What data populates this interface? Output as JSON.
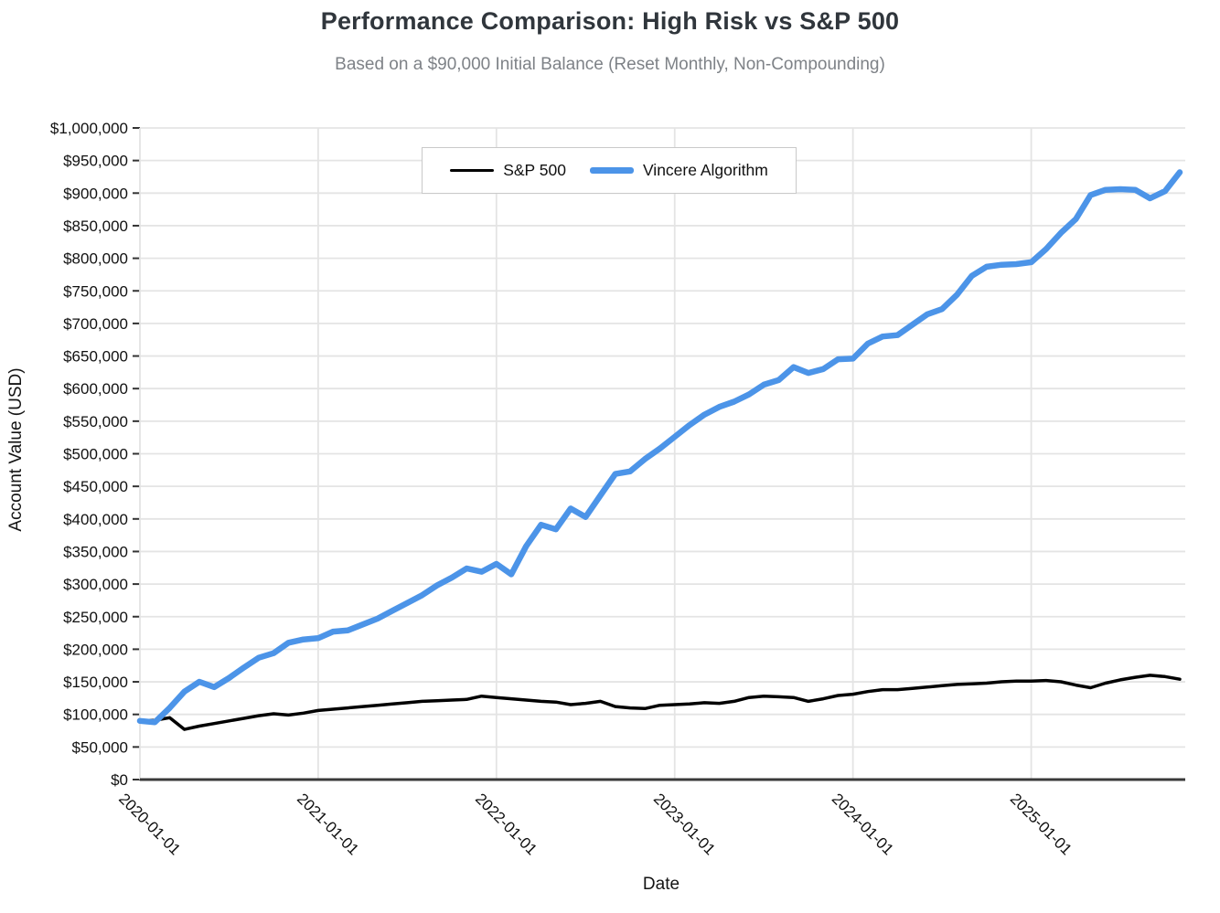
{
  "header": {
    "title": "Performance Comparison: High Risk vs S&P 500",
    "subtitle": "Based on a $90,000 Initial Balance (Reset Monthly, Non-Compounding)"
  },
  "colors": {
    "sp500_line": "#000000",
    "vincere_line": "#4C94E8",
    "gridline": "#e4e4e4",
    "axis_line": "#3a3a3a",
    "title_text": "#30363c",
    "subtitle_text": "#7e8287",
    "legend_border": "#c9c9c9"
  },
  "chart_data": {
    "type": "line",
    "title": "Performance Comparison: High Risk vs S&P 500",
    "subtitle": "Based on a $90,000 Initial Balance (Reset Monthly, Non-Compounding)",
    "xlabel": "Date",
    "ylabel": "Account Value (USD)",
    "ylim": [
      0,
      1000000
    ],
    "ytick_step": 50000,
    "grid": true,
    "legend_position": "top-center-inside",
    "ytick_labels": [
      "$0",
      "$50,000",
      "$100,000",
      "$150,000",
      "$200,000",
      "$250,000",
      "$300,000",
      "$350,000",
      "$400,000",
      "$450,000",
      "$500,000",
      "$550,000",
      "$600,000",
      "$650,000",
      "$700,000",
      "$750,000",
      "$800,000",
      "$850,000",
      "$900,000",
      "$950,000",
      "$1,000,000"
    ],
    "xticks": [
      {
        "index": 0,
        "label": "2020-01-01"
      },
      {
        "index": 12,
        "label": "2021-01-01"
      },
      {
        "index": 24,
        "label": "2022-01-01"
      },
      {
        "index": 36,
        "label": "2023-01-01"
      },
      {
        "index": 48,
        "label": "2024-01-01"
      },
      {
        "index": 60,
        "label": "2025-01-01"
      }
    ],
    "x": [
      "2020-01",
      "2020-02",
      "2020-03",
      "2020-04",
      "2020-05",
      "2020-06",
      "2020-07",
      "2020-08",
      "2020-09",
      "2020-10",
      "2020-11",
      "2020-12",
      "2021-01",
      "2021-02",
      "2021-03",
      "2021-04",
      "2021-05",
      "2021-06",
      "2021-07",
      "2021-08",
      "2021-09",
      "2021-10",
      "2021-11",
      "2021-12",
      "2022-01",
      "2022-02",
      "2022-03",
      "2022-04",
      "2022-05",
      "2022-06",
      "2022-07",
      "2022-08",
      "2022-09",
      "2022-10",
      "2022-11",
      "2022-12",
      "2023-01",
      "2023-02",
      "2023-03",
      "2023-04",
      "2023-05",
      "2023-06",
      "2023-07",
      "2023-08",
      "2023-09",
      "2023-10",
      "2023-11",
      "2023-12",
      "2024-01",
      "2024-02",
      "2024-03",
      "2024-04",
      "2024-05",
      "2024-06",
      "2024-07",
      "2024-08",
      "2024-09",
      "2024-10",
      "2024-11",
      "2024-12",
      "2025-01",
      "2025-02",
      "2025-03",
      "2025-04",
      "2025-05",
      "2025-06",
      "2025-07",
      "2025-08",
      "2025-09",
      "2025-10",
      "2025-11"
    ],
    "series": [
      {
        "name": "S&P 500",
        "color": "#000000",
        "width": 3.5,
        "values": [
          90000,
          91000,
          95000,
          77000,
          82000,
          86000,
          90000,
          94000,
          98000,
          101000,
          99000,
          102000,
          106000,
          108000,
          110000,
          112000,
          114000,
          116000,
          118000,
          120000,
          121000,
          122000,
          123000,
          128000,
          126000,
          124000,
          122000,
          120000,
          119000,
          115000,
          117000,
          120000,
          112000,
          110000,
          109000,
          114000,
          115000,
          116000,
          118000,
          117000,
          120000,
          126000,
          128000,
          127000,
          126000,
          120000,
          124000,
          129000,
          131000,
          135000,
          138000,
          138000,
          140000,
          142000,
          144000,
          146000,
          147000,
          148000,
          150000,
          151000,
          151000,
          152000,
          150000,
          145000,
          141000,
          148000,
          153000,
          157000,
          160000,
          158000,
          154000
        ]
      },
      {
        "name": "Vincere Algorithm",
        "color": "#4C94E8",
        "width": 6.5,
        "values": [
          90000,
          88000,
          110000,
          135000,
          150000,
          142000,
          156000,
          172000,
          187000,
          194000,
          210000,
          215000,
          217000,
          227000,
          229000,
          238000,
          247000,
          259000,
          271000,
          283000,
          298000,
          310000,
          324000,
          319000,
          331000,
          315000,
          358000,
          391000,
          384000,
          416000,
          403000,
          436000,
          469000,
          473000,
          492000,
          508000,
          526000,
          544000,
          560000,
          572000,
          580000,
          591000,
          606000,
          613000,
          633000,
          624000,
          630000,
          645000,
          646000,
          669000,
          680000,
          682000,
          698000,
          714000,
          722000,
          744000,
          773000,
          787000,
          790000,
          791000,
          794000,
          814000,
          839000,
          860000,
          897000,
          905000,
          906000,
          905000,
          892000,
          903000,
          932000
        ]
      }
    ]
  }
}
